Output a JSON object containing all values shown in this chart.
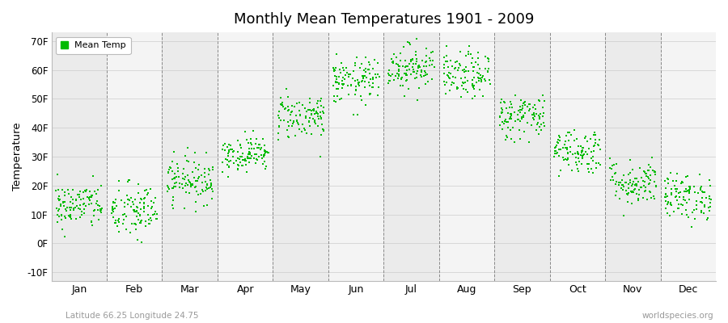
{
  "title": "Monthly Mean Temperatures 1901 - 2009",
  "ylabel": "Temperature",
  "xlabel_labels": [
    "Jan",
    "Feb",
    "Mar",
    "Apr",
    "May",
    "Jun",
    "Jul",
    "Aug",
    "Sep",
    "Oct",
    "Nov",
    "Dec"
  ],
  "ytick_labels": [
    "-10F",
    "0F",
    "10F",
    "20F",
    "30F",
    "40F",
    "50F",
    "60F",
    "70F"
  ],
  "ytick_values": [
    -10,
    0,
    10,
    20,
    30,
    40,
    50,
    60,
    70
  ],
  "ylim": [
    -13,
    73
  ],
  "dot_color": "#00bb00",
  "dot_size": 3,
  "footer_left": "Latitude 66.25 Longitude 24.75",
  "footer_right": "worldspecies.org",
  "legend_label": "Mean Temp",
  "n_years": 109,
  "month_means": [
    13,
    11,
    22,
    31,
    44,
    56,
    61,
    58,
    44,
    32,
    21,
    16
  ],
  "month_stds": [
    4,
    5,
    4,
    3,
    4,
    4,
    4,
    4,
    4,
    4,
    4,
    4
  ],
  "bg_bands": [
    "#ebebeb",
    "#f4f4f4",
    "#ebebeb",
    "#f4f4f4",
    "#ebebeb",
    "#f4f4f4",
    "#ebebeb",
    "#f4f4f4",
    "#ebebeb",
    "#f4f4f4",
    "#ebebeb",
    "#f4f4f4"
  ]
}
